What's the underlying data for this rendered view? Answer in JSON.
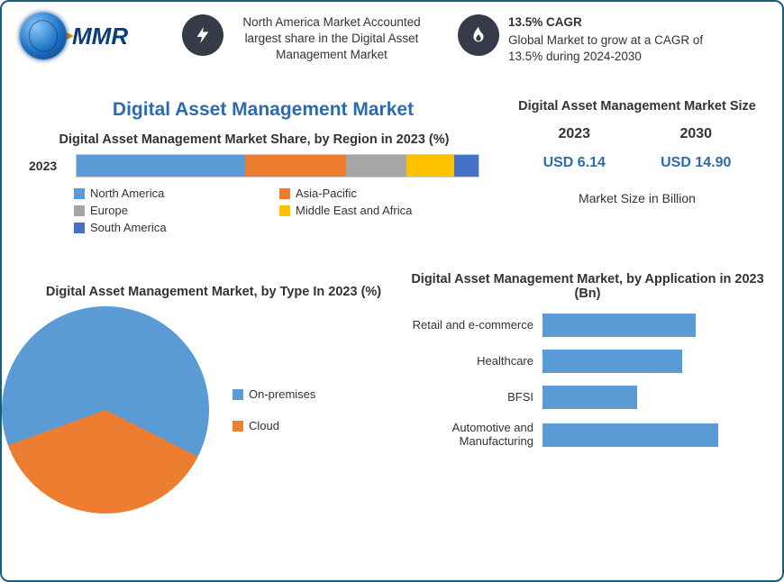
{
  "colors": {
    "series_blue": "#5b9bd5",
    "series_orange": "#ed7d31",
    "series_gray": "#a5a5a5",
    "series_yellow": "#ffc000",
    "series_dark_blue": "#4472c4",
    "accent_text_blue": "#2b6cb0",
    "icon_bg": "#353b48",
    "border": "#1a5f7a"
  },
  "logo": {
    "text": "MMR"
  },
  "callouts": {
    "left": {
      "icon": "bolt-icon",
      "text": "North America Market Accounted largest share in the Digital Asset Management Market"
    },
    "right": {
      "icon": "flame-icon",
      "title": "13.5% CAGR",
      "text": "Global Market to grow at a CAGR of 13.5% during 2024-2030"
    }
  },
  "main_title": "Digital Asset Management Market",
  "region_chart": {
    "type": "stacked-bar",
    "title": "Digital Asset Management Market Share, by Region in 2023 (%)",
    "year_label": "2023",
    "segments": [
      {
        "label": "North America",
        "pct": 42,
        "color": "#5b9bd5"
      },
      {
        "label": "Asia-Pacific",
        "pct": 25,
        "color": "#ed7d31"
      },
      {
        "label": "Europe",
        "pct": 15,
        "color": "#a5a5a5"
      },
      {
        "label": "Middle East and Africa",
        "pct": 12,
        "color": "#ffc000"
      },
      {
        "label": "South America",
        "pct": 6,
        "color": "#4472c4"
      }
    ]
  },
  "size_panel": {
    "title": "Digital Asset Management Market Size",
    "cols": [
      {
        "year": "2023",
        "value": "USD 6.14"
      },
      {
        "year": "2030",
        "value": "USD 14.90"
      }
    ],
    "note": "Market Size in Billion"
  },
  "pie_chart": {
    "type": "pie",
    "title": "Digital Asset Management Market, by Type In 2023 (%)",
    "slices": [
      {
        "label": "On-premises",
        "pct": 63,
        "color": "#5b9bd5"
      },
      {
        "label": "Cloud",
        "pct": 37,
        "color": "#ed7d31"
      }
    ],
    "start_angle_deg": 250
  },
  "app_chart": {
    "type": "bar-horizontal",
    "title": "Digital Asset Management Market, by Application in 2023 (Bn)",
    "xlim": [
      0,
      2.5
    ],
    "bar_color": "#5b9bd5",
    "bars": [
      {
        "label": "Retail and e-commerce",
        "value": 1.7
      },
      {
        "label": "Healthcare",
        "value": 1.55
      },
      {
        "label": "BFSI",
        "value": 1.05
      },
      {
        "label": "Automotive and Manufacturing",
        "value": 1.95
      }
    ]
  }
}
